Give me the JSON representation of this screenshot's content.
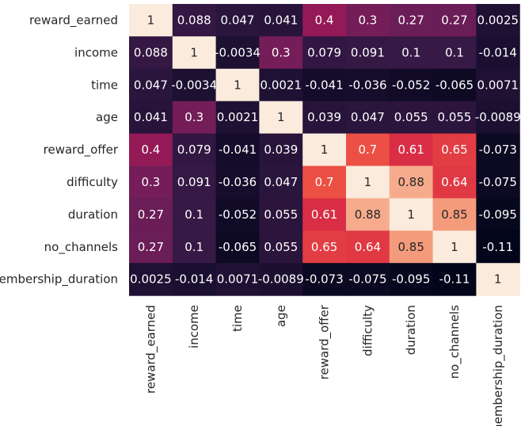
{
  "chart_data": {
    "type": "heatmap",
    "title": "",
    "xlabel": "",
    "ylabel": "",
    "colormap": "rocket",
    "vmin": -0.11,
    "vmax": 1,
    "colorbar": false,
    "labels": [
      "reward_earned",
      "income",
      "time",
      "age",
      "reward_offer",
      "difficulty",
      "duration",
      "no_channels",
      "membership_duration"
    ],
    "values": [
      [
        1,
        0.088,
        0.047,
        0.041,
        0.4,
        0.3,
        0.27,
        0.27,
        0.0025
      ],
      [
        0.088,
        1,
        -0.0034,
        0.3,
        0.079,
        0.091,
        0.1,
        0.1,
        -0.014
      ],
      [
        0.047,
        -0.0034,
        1,
        0.0021,
        -0.041,
        -0.036,
        -0.052,
        -0.065,
        0.0071
      ],
      [
        0.041,
        0.3,
        0.0021,
        1,
        0.039,
        0.047,
        0.055,
        0.055,
        -0.0089
      ],
      [
        0.4,
        0.079,
        -0.041,
        0.039,
        1,
        0.7,
        0.61,
        0.65,
        -0.073
      ],
      [
        0.3,
        0.091,
        -0.036,
        0.047,
        0.7,
        1,
        0.88,
        0.64,
        -0.075
      ],
      [
        0.27,
        0.1,
        -0.052,
        0.055,
        0.61,
        0.88,
        1,
        0.85,
        -0.095
      ],
      [
        0.27,
        0.1,
        -0.065,
        0.055,
        0.65,
        0.64,
        0.85,
        1,
        -0.11
      ],
      [
        0.0025,
        -0.014,
        0.0071,
        -0.0089,
        -0.073,
        -0.075,
        -0.095,
        -0.11,
        1
      ]
    ],
    "annotations": [
      [
        "1",
        "0.088",
        "0.047",
        "0.041",
        "0.4",
        "0.3",
        "0.27",
        "0.27",
        "0.0025"
      ],
      [
        "0.088",
        "1",
        "-0.0034",
        "0.3",
        "0.079",
        "0.091",
        "0.1",
        "0.1",
        "-0.014"
      ],
      [
        "0.047",
        "-0.0034",
        "1",
        "0.0021",
        "-0.041",
        "-0.036",
        "-0.052",
        "-0.065",
        "0.0071"
      ],
      [
        "0.041",
        "0.3",
        "0.0021",
        "1",
        "0.039",
        "0.047",
        "0.055",
        "0.055",
        "-0.0089"
      ],
      [
        "0.4",
        "0.079",
        "-0.041",
        "0.039",
        "1",
        "0.7",
        "0.61",
        "0.65",
        "-0.073"
      ],
      [
        "0.3",
        "0.091",
        "-0.036",
        "0.047",
        "0.7",
        "1",
        "0.88",
        "0.64",
        "-0.075"
      ],
      [
        "0.27",
        "0.1",
        "-0.052",
        "0.055",
        "0.61",
        "0.88",
        "1",
        "0.85",
        "-0.095"
      ],
      [
        "0.27",
        "0.1",
        "-0.065",
        "0.055",
        "0.65",
        "0.64",
        "0.85",
        "1",
        "-0.11"
      ],
      [
        "0.0025",
        "-0.014",
        "0.0071",
        "-0.0089",
        "-0.073",
        "-0.075",
        "-0.095",
        "-0.11",
        "1"
      ]
    ]
  }
}
